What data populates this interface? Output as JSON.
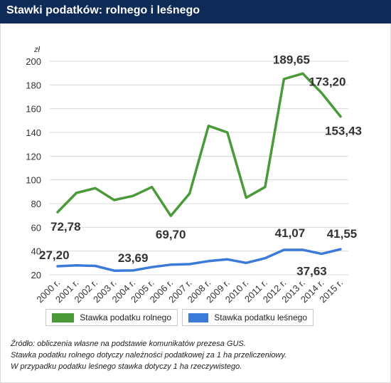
{
  "header": {
    "title": "Stawki podatków: rolnego i leśnego"
  },
  "chart_data": {
    "type": "line",
    "title": "Stawki podatków: rolnego i leśnego",
    "ylabel": "zł",
    "xlabel": "",
    "ylim": [
      20,
      200
    ],
    "yticks": [
      20,
      40,
      60,
      80,
      100,
      120,
      140,
      160,
      180,
      200
    ],
    "grid": true,
    "legend_placement": "bottom-left",
    "categories": [
      "2000 r.",
      "2001 r.",
      "2002 r.",
      "2003 r.",
      "2004 r.",
      "2005 r.",
      "2006 r.",
      "2007 r.",
      "2008 r.",
      "2009 r.",
      "2010 r.",
      "2011 r.",
      "2012 r.",
      "2013 r.",
      "2014 r.",
      "2015 r."
    ],
    "series": [
      {
        "name": "Stawka podatku rolnego",
        "color": "#4a9a3a",
        "values": [
          72.78,
          89,
          93,
          83,
          86.5,
          94,
          69.7,
          88.5,
          145.5,
          140,
          85,
          94,
          185,
          189.65,
          173.2,
          153.43
        ]
      },
      {
        "name": "Stawka podatku leśnego",
        "color": "#3b7ad9",
        "values": [
          27.2,
          28,
          27.5,
          23.5,
          23.69,
          26.5,
          28.5,
          29,
          31.5,
          33,
          30,
          34,
          41,
          41.07,
          37.63,
          41.55
        ]
      }
    ],
    "data_labels": [
      {
        "series": 0,
        "index": 0,
        "text": "72,78"
      },
      {
        "series": 0,
        "index": 6,
        "text": "69,70"
      },
      {
        "series": 0,
        "index": 13,
        "text": "189,65"
      },
      {
        "series": 0,
        "index": 14,
        "text": "173,20"
      },
      {
        "series": 0,
        "index": 15,
        "text": "153,43"
      },
      {
        "series": 1,
        "index": 0,
        "text": "27,20"
      },
      {
        "series": 1,
        "index": 4,
        "text": "23,69"
      },
      {
        "series": 1,
        "index": 13,
        "text": "41,07"
      },
      {
        "series": 1,
        "index": 14,
        "text": "37,63"
      },
      {
        "series": 1,
        "index": 15,
        "text": "41,55"
      }
    ]
  },
  "sources": [
    "Źródło: obliczenia własne na podstawie komunikatów prezesa GUS.",
    "Stawka podatku rolnego dotyczy należności podatkowej za 1 ha przeliczeniowy.",
    "W przypadku podatku leśnego stawka dotyczy 1 ha rzeczywistego."
  ]
}
